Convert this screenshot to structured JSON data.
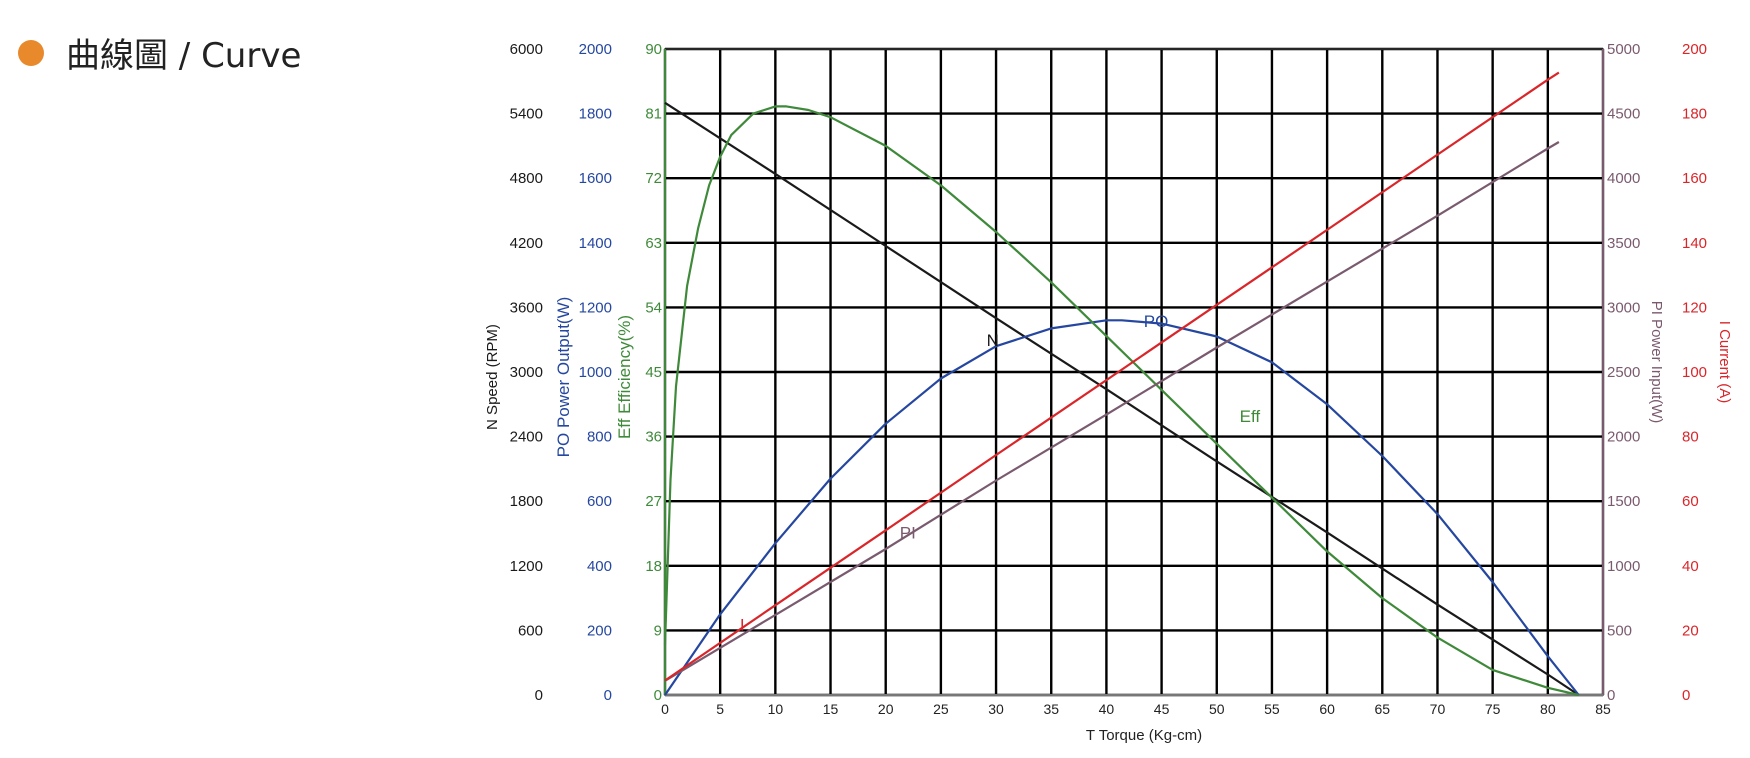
{
  "section": {
    "title": "曲線圖 / Curve"
  },
  "colors": {
    "accent_dot": "#e8892b",
    "speed": "#1a1a1a",
    "power_output": "#2547a0",
    "efficiency": "#3f8a3a",
    "power_input": "#7a5a6e",
    "current": "#d9262a",
    "grid": "#000000"
  },
  "chart_data": {
    "type": "line",
    "grid": true,
    "x_axis": {
      "label": "T    Torque (Kg-cm)",
      "range": [
        0,
        85
      ],
      "ticks": [
        0,
        5,
        10,
        15,
        20,
        25,
        30,
        35,
        40,
        45,
        50,
        55,
        60,
        65,
        70,
        75,
        80,
        85
      ]
    },
    "y_axes": [
      {
        "key": "speed",
        "label": "N Speed (RPM)",
        "side": "left",
        "range": [
          0,
          6000
        ],
        "ticks": [
          0,
          600,
          1200,
          1800,
          2400,
          3000,
          3600,
          4200,
          4800,
          5400,
          6000
        ]
      },
      {
        "key": "power_output",
        "label": "PO Power Output(W)",
        "side": "left",
        "range": [
          0,
          2000
        ],
        "ticks": [
          0,
          200,
          400,
          600,
          800,
          1000,
          1200,
          1400,
          1600,
          1800,
          2000
        ]
      },
      {
        "key": "efficiency",
        "label": "Eff Efficiency(%)",
        "side": "left",
        "range": [
          0,
          90
        ],
        "ticks": [
          0,
          9,
          18,
          27,
          36,
          45,
          54,
          63,
          72,
          81,
          90
        ]
      },
      {
        "key": "power_input",
        "label": "PI   Power Input(W)",
        "side": "right",
        "range": [
          0,
          5000
        ],
        "ticks": [
          0,
          500,
          1000,
          1500,
          2000,
          2500,
          3000,
          3500,
          4000,
          4500,
          5000
        ]
      },
      {
        "key": "current",
        "label": "I   Current (A)",
        "side": "right",
        "range": [
          0,
          200
        ],
        "ticks": [
          0,
          20,
          40,
          60,
          80,
          100,
          120,
          140,
          160,
          180,
          200
        ]
      }
    ],
    "series": [
      {
        "name": "N",
        "axis": "speed",
        "x": [
          0,
          10,
          20,
          30,
          40,
          50,
          60,
          70,
          80,
          82.8
        ],
        "y": [
          5500,
          4840,
          4170,
          3500,
          2840,
          2170,
          1510,
          840,
          190,
          0
        ]
      },
      {
        "name": "PO",
        "axis": "power_output",
        "x": [
          0,
          5,
          10,
          15,
          20,
          25,
          30,
          35,
          40,
          41.4,
          45,
          50,
          55,
          60,
          65,
          70,
          75,
          80,
          82.8
        ],
        "y": [
          0,
          250,
          470,
          670,
          840,
          980,
          1080,
          1135,
          1160,
          1160,
          1150,
          1110,
          1030,
          900,
          740,
          560,
          350,
          120,
          0
        ]
      },
      {
        "name": "Eff",
        "axis": "efficiency",
        "x": [
          0,
          0.5,
          1,
          2,
          3,
          4,
          5,
          6,
          8,
          10,
          11,
          13,
          15,
          20,
          25,
          30,
          35,
          40,
          45,
          50,
          55,
          60,
          65,
          70,
          75,
          80,
          82.8
        ],
        "y": [
          7,
          30,
          43,
          57,
          65,
          71,
          75,
          78,
          81,
          82,
          82,
          81.5,
          80.5,
          76.5,
          71,
          64.5,
          57.5,
          50,
          42.5,
          35,
          27.5,
          20,
          13.5,
          8,
          3.5,
          1,
          0
        ]
      },
      {
        "name": "PI",
        "axis": "power_input",
        "x": [
          0,
          10,
          20,
          30,
          40,
          50,
          60,
          70,
          80,
          81
        ],
        "y": [
          110,
          620,
          1130,
          1660,
          2170,
          2690,
          3200,
          3710,
          4230,
          4280
        ]
      },
      {
        "name": "I",
        "axis": "current",
        "x": [
          0,
          10,
          20,
          30,
          40,
          50,
          60,
          70,
          80,
          81
        ],
        "y": [
          4.5,
          27.8,
          51,
          74.3,
          97.5,
          120.8,
          144,
          167.3,
          190.5,
          192.7
        ]
      }
    ],
    "annotations": [
      {
        "text": "N",
        "series": "N",
        "x": 29.7,
        "y": 3240
      },
      {
        "text": "PO",
        "series": "PO",
        "x": 44.5,
        "y": 1140
      },
      {
        "text": "Eff",
        "series": "Eff",
        "x": 53,
        "y": 38
      },
      {
        "text": "PI",
        "series": "PI",
        "x": 22,
        "y": 1210
      },
      {
        "text": "I",
        "series": "I",
        "x": 7,
        "y": 20
      }
    ]
  }
}
